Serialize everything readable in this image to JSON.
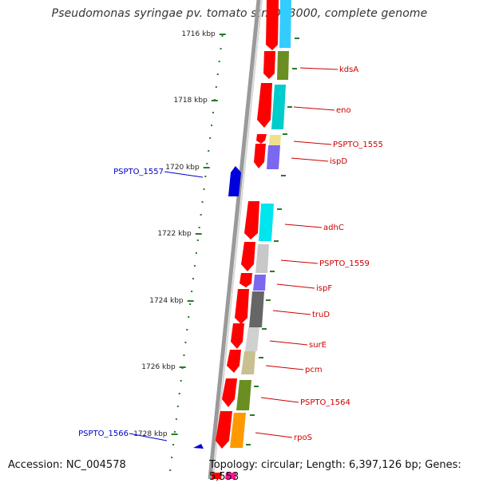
{
  "title": "Pseudomonas syringae pv. tomato str. DC3000, complete genome",
  "footer": {
    "accession": "Accession: NC_004578",
    "topology": "Topology: circular; Length: 6,397,126 bp; Genes: 5,553"
  },
  "ruler": [
    "1716 kbp",
    "1718 kbp",
    "1720 kbp",
    "1722 kbp",
    "1724 kbp",
    "1726 kbp",
    "1728 kbp"
  ],
  "labels_right": [
    "kdsA",
    "eno",
    "PSPTO_1555",
    "ispD",
    "adhC",
    "PSPTO_1559",
    "ispF",
    "truD",
    "surE",
    "pcm",
    "PSPTO_1564",
    "rpoS"
  ],
  "labels_left": [
    "PSPTO_1557",
    "PSPTO_1566"
  ],
  "colors": {
    "label_right": "#cc0000",
    "label_left": "#0000cc",
    "tick": "#2a7a2a",
    "backbone": "#888888",
    "gene_red": "#ff0000",
    "gene_blue": "#0000dd"
  }
}
